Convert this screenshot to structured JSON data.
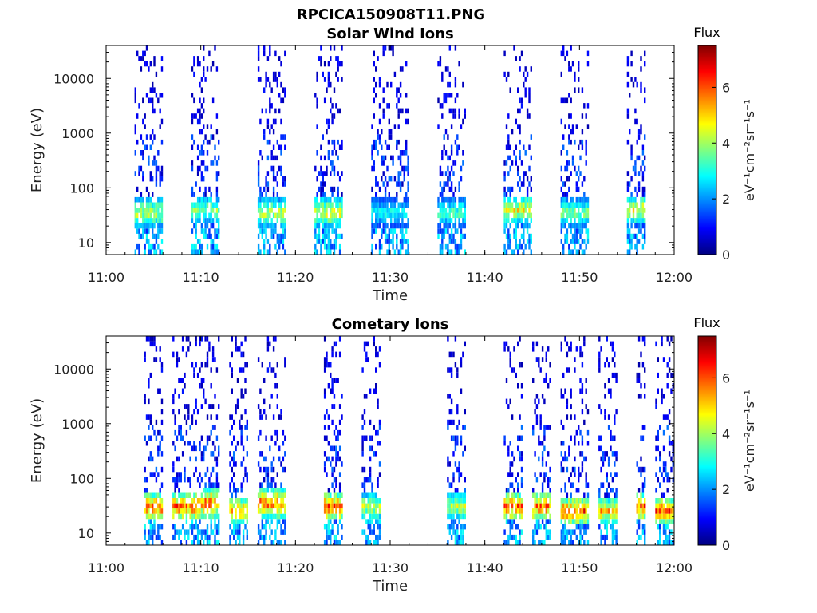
{
  "figure": {
    "title": "RPCICA150908T11.PNG"
  },
  "colors": {
    "colormap": [
      "#000080",
      "#0000ff",
      "#0080ff",
      "#00ffff",
      "#80ff80",
      "#ffff00",
      "#ff8000",
      "#ff0000",
      "#800000"
    ],
    "axis": "#000000",
    "tick": "#444444"
  },
  "chart_data": [
    {
      "type": "heatmap",
      "title": "Solar Wind Ions",
      "xlabel": "Time",
      "ylabel": "Energy (eV)",
      "x_range": [
        "11:00",
        "12:00"
      ],
      "x_ticks": [
        "11:00",
        "11:10",
        "11:20",
        "11:30",
        "11:40",
        "11:50",
        "12:00"
      ],
      "y_scale": "log",
      "y_range": [
        6,
        40000
      ],
      "y_ticks": [
        "10",
        "100",
        "1000",
        "10000"
      ],
      "grid": false,
      "colorbar": {
        "label": "Flux",
        "units": "eV⁻¹cm⁻²sr⁻¹s⁻¹",
        "range": [
          0,
          7.5
        ],
        "ticks": [
          "0",
          "2",
          "4",
          "6"
        ]
      },
      "bursts": [
        {
          "start": "11:03",
          "end": "11:06",
          "peak_energy_ev": 35,
          "peak_flux": 5.0
        },
        {
          "start": "11:09",
          "end": "11:12",
          "peak_energy_ev": 40,
          "peak_flux": 4.5
        },
        {
          "start": "11:16",
          "end": "11:19",
          "peak_energy_ev": 35,
          "peak_flux": 5.0
        },
        {
          "start": "11:22",
          "end": "11:25",
          "peak_energy_ev": 35,
          "peak_flux": 5.5
        },
        {
          "start": "11:28",
          "end": "11:32",
          "peak_energy_ev": 35,
          "peak_flux": 3.5
        },
        {
          "start": "11:35",
          "end": "11:38",
          "peak_energy_ev": 35,
          "peak_flux": 4.0
        },
        {
          "start": "11:42",
          "end": "11:45",
          "peak_energy_ev": 40,
          "peak_flux": 5.5
        },
        {
          "start": "11:48",
          "end": "11:51",
          "peak_energy_ev": 35,
          "peak_flux": 4.5
        },
        {
          "start": "11:55",
          "end": "11:57",
          "peak_energy_ev": 40,
          "peak_flux": 5.5
        }
      ]
    },
    {
      "type": "heatmap",
      "title": "Cometary Ions",
      "xlabel": "Time",
      "ylabel": "Energy (eV)",
      "x_range": [
        "11:00",
        "12:00"
      ],
      "x_ticks": [
        "11:00",
        "11:10",
        "11:20",
        "11:30",
        "11:40",
        "11:50",
        "12:00"
      ],
      "y_scale": "log",
      "y_range": [
        6,
        40000
      ],
      "y_ticks": [
        "10",
        "100",
        "1000",
        "10000"
      ],
      "grid": false,
      "colorbar": {
        "label": "Flux",
        "units": "eV⁻¹cm⁻²sr⁻¹s⁻¹",
        "range": [
          0,
          7.5
        ],
        "ticks": [
          "0",
          "2",
          "4",
          "6"
        ]
      },
      "bursts": [
        {
          "start": "11:04",
          "end": "11:06",
          "peak_energy_ev": 30,
          "peak_flux": 7.0
        },
        {
          "start": "11:07",
          "end": "11:10",
          "peak_energy_ev": 30,
          "peak_flux": 7.0
        },
        {
          "start": "11:10",
          "end": "11:12",
          "peak_energy_ev": 35,
          "peak_flux": 7.0
        },
        {
          "start": "11:13",
          "end": "11:15",
          "peak_energy_ev": 25,
          "peak_flux": 6.5
        },
        {
          "start": "11:16",
          "end": "11:19",
          "peak_energy_ev": 35,
          "peak_flux": 7.0
        },
        {
          "start": "11:23",
          "end": "11:25",
          "peak_energy_ev": 30,
          "peak_flux": 7.0
        },
        {
          "start": "11:27",
          "end": "11:29",
          "peak_energy_ev": 30,
          "peak_flux": 5.0
        },
        {
          "start": "11:36",
          "end": "11:38",
          "peak_energy_ev": 30,
          "peak_flux": 5.0
        },
        {
          "start": "11:42",
          "end": "11:44",
          "peak_energy_ev": 30,
          "peak_flux": 7.0
        },
        {
          "start": "11:45",
          "end": "11:47",
          "peak_energy_ev": 30,
          "peak_flux": 7.0
        },
        {
          "start": "11:48",
          "end": "11:51",
          "peak_energy_ev": 25,
          "peak_flux": 7.0
        },
        {
          "start": "11:52",
          "end": "11:54",
          "peak_energy_ev": 25,
          "peak_flux": 6.0
        },
        {
          "start": "11:56",
          "end": "11:57",
          "peak_energy_ev": 30,
          "peak_flux": 7.0
        },
        {
          "start": "11:58",
          "end": "12:00",
          "peak_energy_ev": 25,
          "peak_flux": 7.0
        }
      ]
    }
  ]
}
